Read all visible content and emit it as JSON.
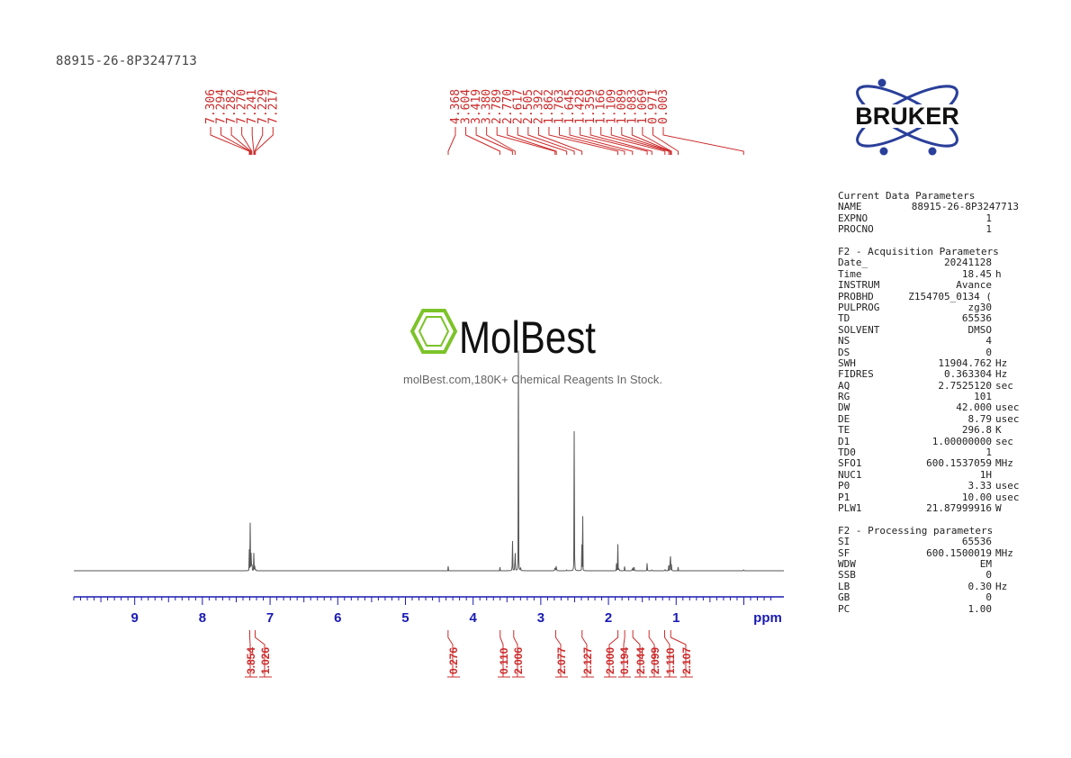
{
  "sample_id": "88915-26-8P3247713",
  "logos": {
    "bruker": "BRUKER",
    "molbest": "MolBest",
    "molbest_tagline": "molBest.com,180K+ Chemical Reagents In Stock."
  },
  "colors": {
    "peak_labels": "#cc2b2b",
    "axis": "#1a1ab4",
    "trace": "#555555"
  },
  "chart_data": {
    "type": "line",
    "title": "",
    "xlabel": "ppm",
    "ylabel": "",
    "xlim": [
      10,
      -0.5
    ],
    "x_reversed": true,
    "ticks": [
      "9",
      "8",
      "7",
      "6",
      "5",
      "4",
      "3",
      "2",
      "1"
    ],
    "peak_labels": [
      "7.306",
      "7.294",
      "7.282",
      "7.270",
      "7.241",
      "7.229",
      "7.217",
      "4.368",
      "3.604",
      "3.419",
      "3.380",
      "2.789",
      "2.770",
      "2.617",
      "2.505",
      "2.392",
      "1.862",
      "1.763",
      "1.645",
      "1.428",
      "1.359",
      "1.166",
      "1.109",
      "1.089",
      "1.083",
      "1.069",
      "0.971",
      "0.003"
    ],
    "peaks": [
      {
        "ppm": 7.306,
        "height": 0.1
      },
      {
        "ppm": 7.294,
        "height": 0.14
      },
      {
        "ppm": 7.282,
        "height": 0.17
      },
      {
        "ppm": 7.27,
        "height": 0.15
      },
      {
        "ppm": 7.241,
        "height": 0.06
      },
      {
        "ppm": 7.229,
        "height": 0.055
      },
      {
        "ppm": 7.217,
        "height": 0.035
      },
      {
        "ppm": 4.368,
        "height": 0.012
      },
      {
        "ppm": 3.604,
        "height": 0.012
      },
      {
        "ppm": 3.419,
        "height": 0.3
      },
      {
        "ppm": 3.38,
        "height": 0.35
      },
      {
        "ppm": 3.33,
        "height": 0.98
      },
      {
        "ppm": 3.3,
        "height": 0.05
      },
      {
        "ppm": 2.789,
        "height": 0.072
      },
      {
        "ppm": 2.77,
        "height": 0.075
      },
      {
        "ppm": 2.617,
        "height": 0.012
      },
      {
        "ppm": 2.505,
        "height": 1.05
      },
      {
        "ppm": 2.392,
        "height": 0.19
      },
      {
        "ppm": 2.38,
        "height": 0.14
      },
      {
        "ppm": 1.88,
        "height": 0.055
      },
      {
        "ppm": 1.862,
        "height": 0.09
      },
      {
        "ppm": 1.845,
        "height": 0.05
      },
      {
        "ppm": 1.763,
        "height": 0.03
      },
      {
        "ppm": 1.645,
        "height": 0.06
      },
      {
        "ppm": 1.62,
        "height": 0.05
      },
      {
        "ppm": 1.428,
        "height": 0.05
      },
      {
        "ppm": 1.359,
        "height": 0.018
      },
      {
        "ppm": 1.166,
        "height": 0.02
      },
      {
        "ppm": 1.109,
        "height": 0.03
      },
      {
        "ppm": 1.089,
        "height": 0.05
      },
      {
        "ppm": 1.083,
        "height": 0.045
      },
      {
        "ppm": 1.069,
        "height": 0.04
      },
      {
        "ppm": 0.971,
        "height": 0.012
      },
      {
        "ppm": 0.003,
        "height": 0.02
      }
    ],
    "integrals": [
      {
        "value": "3.854",
        "ppm": 7.3
      },
      {
        "value": "1.026",
        "ppm": 7.22
      },
      {
        "value": "0.276",
        "ppm": 4.37
      },
      {
        "value": "0.110",
        "ppm": 3.6
      },
      {
        "value": "2.006",
        "ppm": 3.4
      },
      {
        "value": "2.077",
        "ppm": 2.78
      },
      {
        "value": "2.127",
        "ppm": 2.39
      },
      {
        "value": "2.000",
        "ppm": 1.86
      },
      {
        "value": "0.194",
        "ppm": 1.76
      },
      {
        "value": "2.044",
        "ppm": 1.64
      },
      {
        "value": "2.099",
        "ppm": 1.4
      },
      {
        "value": "1.110",
        "ppm": 1.17
      },
      {
        "value": "2.107",
        "ppm": 1.08
      }
    ]
  },
  "params": {
    "current": {
      "title": "Current Data Parameters",
      "rows": [
        {
          "k": "NAME",
          "v": "88915-26-8P3247713",
          "u": ""
        },
        {
          "k": "EXPNO",
          "v": "1",
          "u": ""
        },
        {
          "k": "PROCNO",
          "v": "1",
          "u": ""
        }
      ]
    },
    "acq": {
      "title": "F2 - Acquisition Parameters",
      "rows": [
        {
          "k": "Date_",
          "v": "20241128",
          "u": ""
        },
        {
          "k": "Time",
          "v": "18.45",
          "u": "h"
        },
        {
          "k": "INSTRUM",
          "v": "Avance",
          "u": ""
        },
        {
          "k": "PROBHD",
          "v": "Z154705_0134 (",
          "u": ""
        },
        {
          "k": "PULPROG",
          "v": "zg30",
          "u": ""
        },
        {
          "k": "TD",
          "v": "65536",
          "u": ""
        },
        {
          "k": "SOLVENT",
          "v": "DMSO",
          "u": ""
        },
        {
          "k": "NS",
          "v": "4",
          "u": ""
        },
        {
          "k": "DS",
          "v": "0",
          "u": ""
        },
        {
          "k": "SWH",
          "v": "11904.762",
          "u": "Hz"
        },
        {
          "k": "FIDRES",
          "v": "0.363304",
          "u": "Hz"
        },
        {
          "k": "AQ",
          "v": "2.7525120",
          "u": "sec"
        },
        {
          "k": "RG",
          "v": "101",
          "u": ""
        },
        {
          "k": "DW",
          "v": "42.000",
          "u": "usec"
        },
        {
          "k": "DE",
          "v": "8.79",
          "u": "usec"
        },
        {
          "k": "TE",
          "v": "296.8",
          "u": "K"
        },
        {
          "k": "D1",
          "v": "1.00000000",
          "u": "sec"
        },
        {
          "k": "TD0",
          "v": "1",
          "u": ""
        },
        {
          "k": "SFO1",
          "v": "600.1537059",
          "u": "MHz"
        },
        {
          "k": "NUC1",
          "v": "1H",
          "u": ""
        },
        {
          "k": "P0",
          "v": "3.33",
          "u": "usec"
        },
        {
          "k": "P1",
          "v": "10.00",
          "u": "usec"
        },
        {
          "k": "PLW1",
          "v": "21.87999916",
          "u": "W"
        }
      ]
    },
    "proc": {
      "title": "F2 - Processing parameters",
      "rows": [
        {
          "k": "SI",
          "v": "65536",
          "u": ""
        },
        {
          "k": "SF",
          "v": "600.1500019",
          "u": "MHz"
        },
        {
          "k": "WDW",
          "v": "EM",
          "u": ""
        },
        {
          "k": "SSB",
          "v": "0",
          "u": ""
        },
        {
          "k": "LB",
          "v": "0.30",
          "u": "Hz"
        },
        {
          "k": "GB",
          "v": "0",
          "u": ""
        },
        {
          "k": "PC",
          "v": "1.00",
          "u": ""
        }
      ]
    }
  }
}
